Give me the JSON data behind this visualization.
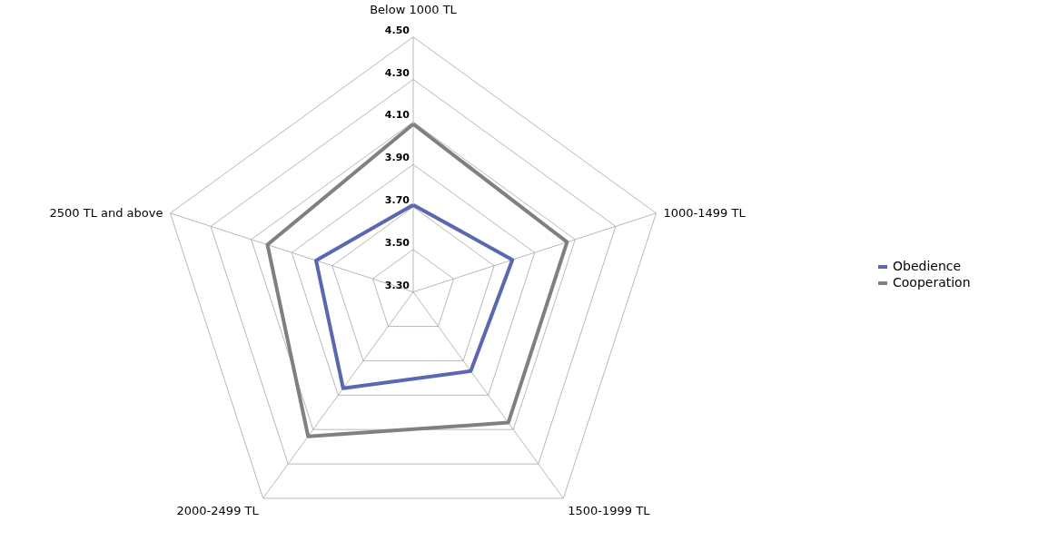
{
  "chart_data": {
    "type": "radar",
    "categories": [
      "Below 1000 TL",
      "1000-1499 TL",
      "1500-1999 TL",
      "2000-2499 TL",
      "2500 TL and above"
    ],
    "series": [
      {
        "name": "Obedience",
        "color": "#5b67b1",
        "values": [
          3.71,
          3.79,
          3.76,
          3.86,
          3.78
        ]
      },
      {
        "name": "Cooperation",
        "color": "#808080",
        "values": [
          4.09,
          4.06,
          4.06,
          4.14,
          4.02
        ]
      }
    ],
    "ylim": [
      3.3,
      4.5
    ],
    "yticks": [
      {
        "value": 3.3,
        "label": "3.30"
      },
      {
        "value": 3.5,
        "label": "3.50"
      },
      {
        "value": 3.7,
        "label": "3.70"
      },
      {
        "value": 3.9,
        "label": "3.90"
      },
      {
        "value": 4.1,
        "label": "4.10"
      },
      {
        "value": 4.3,
        "label": "4.30"
      },
      {
        "value": 4.5,
        "label": "4.50"
      }
    ],
    "grid": true,
    "legend": "right"
  }
}
